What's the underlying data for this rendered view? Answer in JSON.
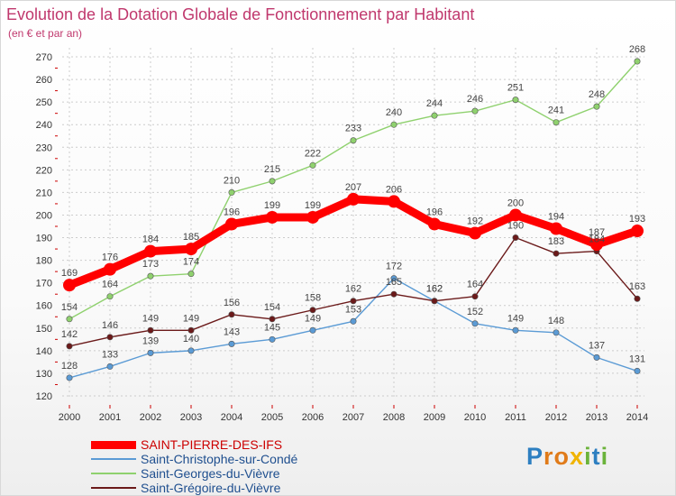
{
  "header": {
    "title": "Evolution de la Dotation Globale de Fonctionnement par Habitant",
    "subtitle": "(en € et par an)"
  },
  "colors": {
    "title": "#c0386d",
    "background": "#ffffff",
    "grid": "#cccccc",
    "tick_marks": "#cc0000"
  },
  "chart_data": {
    "type": "line",
    "title": "Evolution de la Dotation Globale de Fonctionnement par Habitant",
    "subtitle": "(en € et par an)",
    "xlabel": "",
    "ylabel": "",
    "x": [
      "2000",
      "2001",
      "2002",
      "2003",
      "2004",
      "2005",
      "2006",
      "2007",
      "2008",
      "2009",
      "2010",
      "2011",
      "2012",
      "2013",
      "2014"
    ],
    "ylim": [
      120,
      270
    ],
    "yticks": [
      120,
      130,
      140,
      150,
      160,
      170,
      180,
      190,
      200,
      210,
      220,
      230,
      240,
      250,
      260,
      270
    ],
    "grid": true,
    "legend_position": "bottom-left",
    "series": [
      {
        "name": "SAINT-PIERRE-DES-IFS",
        "color": "#ff0000",
        "emphasis": true,
        "values": [
          169,
          176,
          184,
          185,
          196,
          199,
          199,
          207,
          206,
          196,
          192,
          200,
          194,
          187,
          193
        ]
      },
      {
        "name": "Saint-Christophe-sur-Condé",
        "color": "#5b9bd5",
        "emphasis": false,
        "values": [
          128,
          133,
          139,
          140,
          143,
          145,
          149,
          153,
          172,
          162,
          152,
          149,
          148,
          137,
          131
        ]
      },
      {
        "name": "Saint-Georges-du-Vièvre",
        "color": "#8fd16e",
        "emphasis": false,
        "values": [
          154,
          164,
          173,
          174,
          210,
          215,
          222,
          233,
          240,
          244,
          246,
          251,
          241,
          248,
          268
        ]
      },
      {
        "name": "Saint-Grégoire-du-Vièvre",
        "color": "#6b1a1a",
        "emphasis": false,
        "values": [
          142,
          146,
          149,
          149,
          156,
          154,
          158,
          162,
          165,
          162,
          164,
          190,
          183,
          184,
          163
        ]
      }
    ]
  },
  "logo": {
    "text": "Proxiti",
    "letters": [
      {
        "ch": "P",
        "color": "#2d7fc1"
      },
      {
        "ch": "r",
        "color": "#e07b1a"
      },
      {
        "ch": "o",
        "color": "#e07b1a"
      },
      {
        "ch": "x",
        "color": "#f0b400"
      },
      {
        "ch": "i",
        "color": "#6bb33a"
      },
      {
        "ch": "t",
        "color": "#2d7fc1"
      },
      {
        "ch": "i",
        "color": "#6bb33a"
      }
    ]
  }
}
